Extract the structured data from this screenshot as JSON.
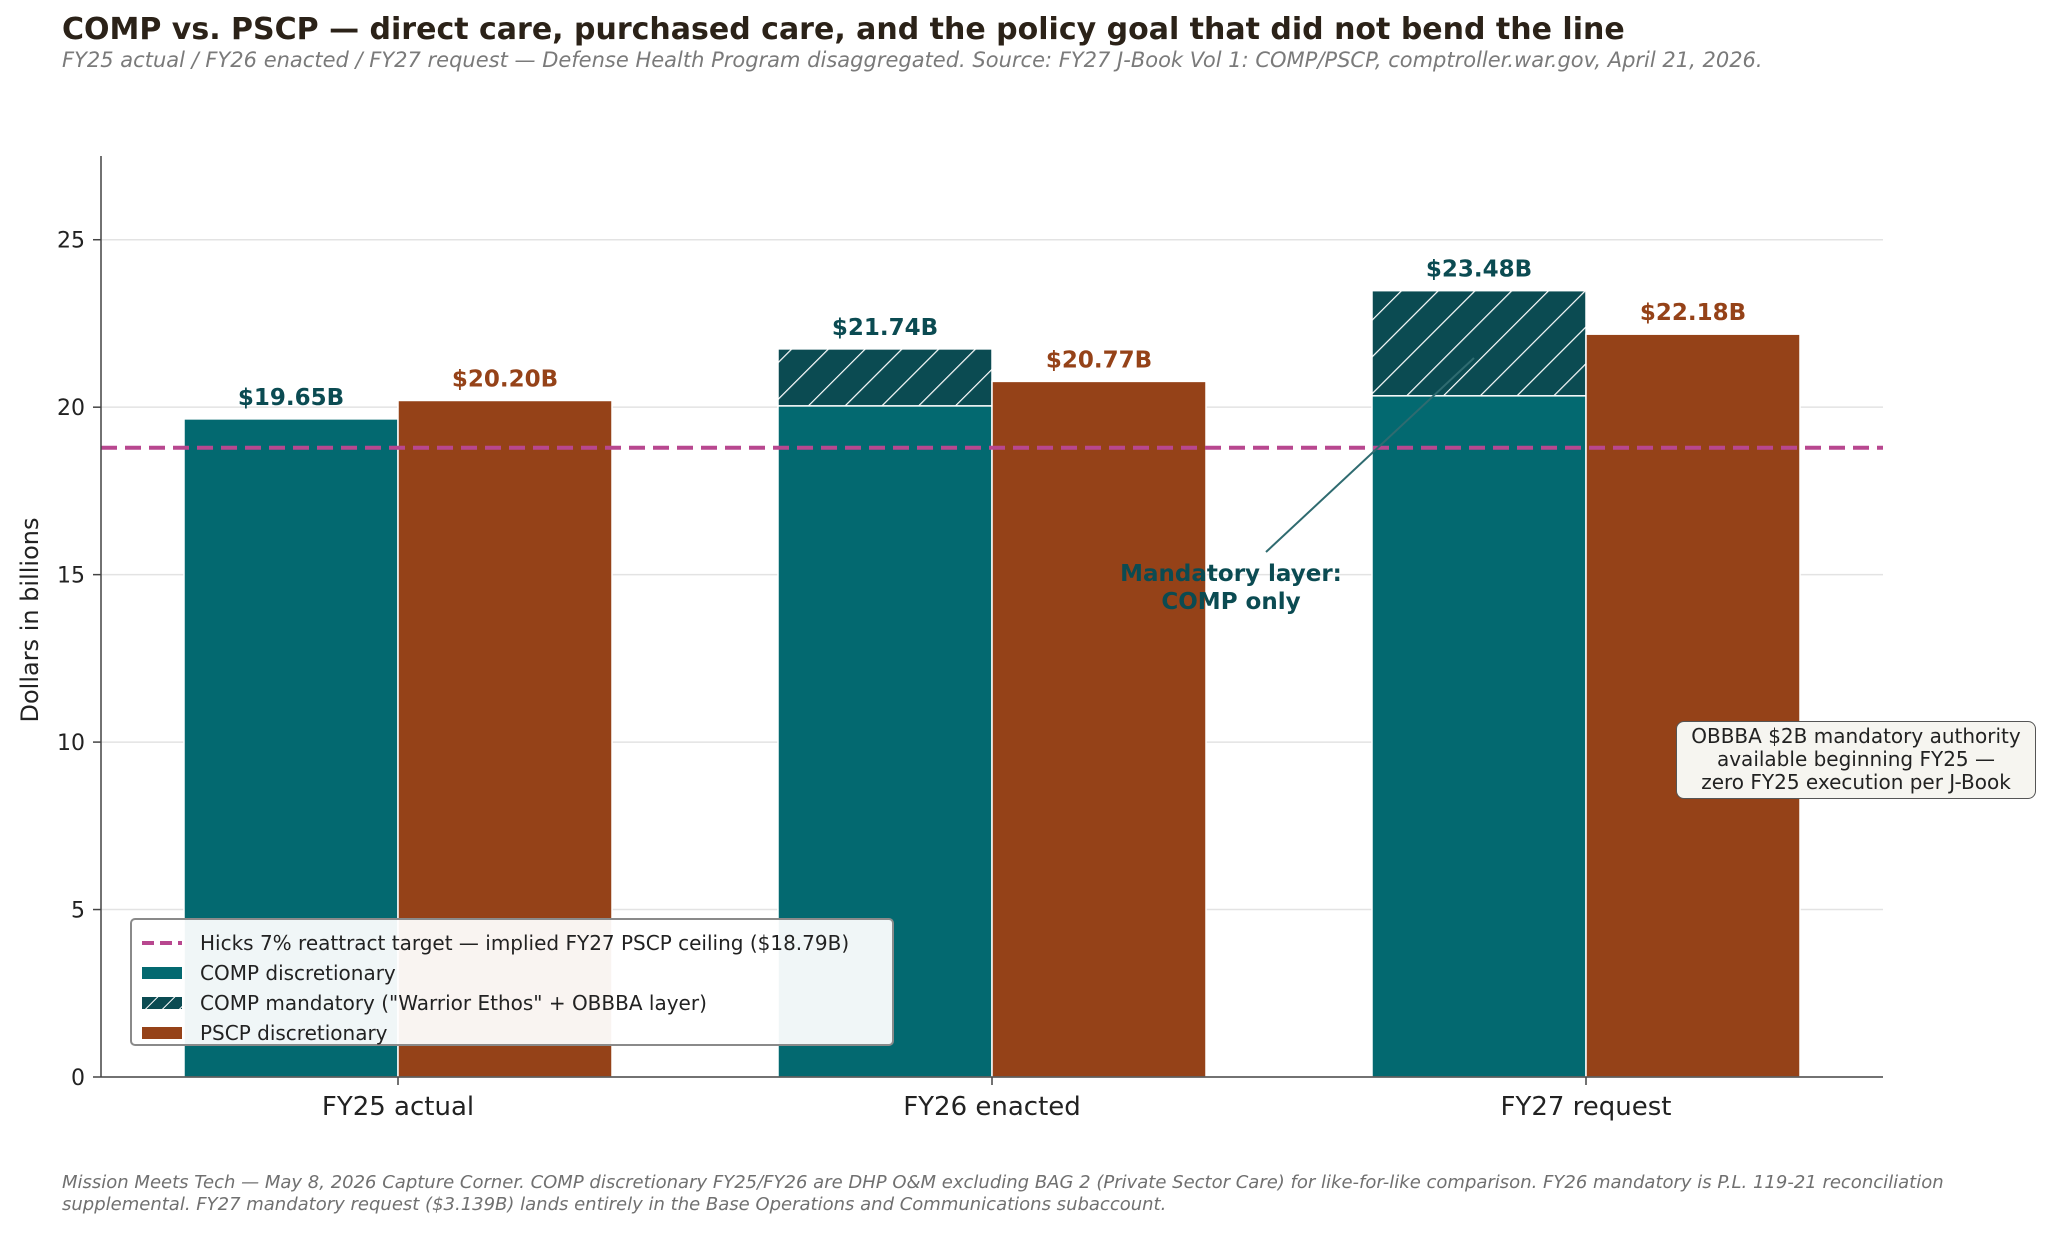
{
  "title": "COMP vs. PSCP — direct care, purchased care, and the policy goal that did not bend the line",
  "subtitle": "FY25 actual / FY26 enacted / FY27 request — Defense Health Program disaggregated. Source: FY27 J-Book Vol 1: COMP/PSCP, comptroller.war.gov, April 21, 2026.",
  "footnote": {
    "line1": "Mission Meets Tech — May 8, 2026 Capture Corner. COMP discretionary FY25/FY26 are DHP O&M excluding BAG 2 (Private Sector Care) for like-for-like comparison. FY26 mandatory is P.L. 119-21 reconciliation",
    "line2": "supplemental. FY27 mandatory request ($3.139B) lands entirely in the Base Operations and Communications subaccount."
  },
  "note_box": {
    "line1": "OBBBA $2B mandatory authority",
    "line2": "available beginning FY25 —",
    "line3": "zero FY25 execution per J-Book"
  },
  "annotation": {
    "line1": "Mandatory layer:",
    "line2": "COMP only"
  },
  "colors": {
    "comp": "#036970",
    "comp_mandatory": "#0b4b52",
    "pscp": "#954218",
    "target": "#b8478f",
    "comp_label": "#0b4b52",
    "pscp_label": "#954218"
  },
  "chart_data": {
    "type": "bar",
    "stacked_groups": true,
    "categories": [
      "FY25 actual",
      "FY26 enacted",
      "FY27 request"
    ],
    "series": [
      {
        "name": "COMP discretionary",
        "stack": "COMP",
        "values": [
          19.65,
          20.04,
          20.34
        ]
      },
      {
        "name": "COMP mandatory (\"Warrior Ethos\" + OBBBA layer)",
        "stack": "COMP",
        "pattern": "hatch",
        "values": [
          0,
          1.7,
          3.139
        ]
      },
      {
        "name": "PSCP discretionary",
        "stack": "PSCP",
        "values": [
          20.2,
          20.77,
          22.18
        ]
      }
    ],
    "total_labels": {
      "COMP": [
        "$19.65B",
        "$21.74B",
        "$23.48B"
      ],
      "PSCP": [
        "$20.20B",
        "$20.77B",
        "$22.18B"
      ]
    },
    "reference_line": {
      "name": "Hicks 7% reattract target — implied FY27 PSCP ceiling ($18.79B)",
      "value": 18.79,
      "style": "dashed"
    },
    "xlabel": "",
    "ylabel": "Dollars in billions",
    "ylim": [
      0,
      27.5
    ],
    "yticks": [
      0,
      5,
      10,
      15,
      20,
      25
    ],
    "grid": "horizontal",
    "legend_position": "lower-left"
  }
}
